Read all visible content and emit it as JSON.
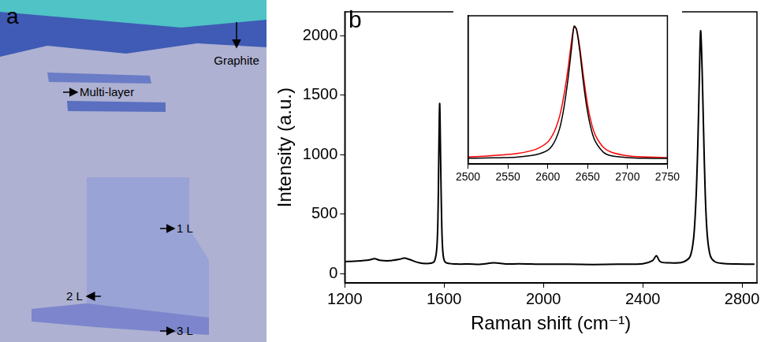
{
  "photo": {
    "letter": "a",
    "labels": [
      "Multi-layer",
      "Graphite",
      "1 L",
      "2 L",
      "3 L"
    ]
  },
  "chart_data": [
    {
      "letter": "b",
      "type": "line",
      "x_label": "Raman shift (cm⁻¹)",
      "y_label": "Intensity (a.u.)",
      "x": [
        1200,
        1250,
        1300,
        1320,
        1340,
        1380,
        1420,
        1440,
        1460,
        1500,
        1540,
        1560,
        1570,
        1575,
        1578,
        1582,
        1586,
        1590,
        1595,
        1605,
        1650,
        1700,
        1750,
        1800,
        1850,
        1900,
        1950,
        2000,
        2100,
        2200,
        2300,
        2400,
        2440,
        2455,
        2470,
        2500,
        2560,
        2590,
        2605,
        2615,
        2622,
        2628,
        2633,
        2638,
        2645,
        2652,
        2660,
        2672,
        2690,
        2720,
        2780,
        2850
      ],
      "values": [
        100,
        105,
        115,
        125,
        112,
        108,
        120,
        130,
        118,
        90,
        85,
        100,
        200,
        450,
        900,
        1430,
        950,
        450,
        180,
        95,
        80,
        80,
        78,
        90,
        80,
        82,
        80,
        78,
        78,
        76,
        78,
        82,
        110,
        150,
        100,
        90,
        95,
        140,
        300,
        650,
        1100,
        1650,
        2040,
        1800,
        1200,
        650,
        320,
        150,
        100,
        85,
        80,
        78
      ],
      "color": "#000000",
      "xlim": [
        1200,
        2860
      ],
      "xticks": [
        1200,
        1600,
        2000,
        2400,
        2800
      ],
      "ylim": [
        -80,
        2200
      ],
      "yticks": [
        0,
        500,
        1000,
        1500,
        2000
      ],
      "grid": false
    },
    {
      "type": "line",
      "x": [
        2500,
        2520,
        2540,
        2560,
        2580,
        2590,
        2600,
        2605,
        2610,
        2615,
        2620,
        2625,
        2630,
        2633,
        2636,
        2640,
        2645,
        2650,
        2655,
        2660,
        2670,
        2680,
        2700,
        2720,
        2750
      ],
      "series": [
        {
          "color": "#000000",
          "values": [
            85,
            88,
            92,
            100,
            125,
            150,
            200,
            260,
            360,
            520,
            800,
            1200,
            1700,
            2000,
            1950,
            1650,
            1150,
            750,
            480,
            320,
            170,
            120,
            95,
            85,
            82
          ]
        },
        {
          "color": "#ff0000",
          "values": [
            105,
            115,
            130,
            150,
            195,
            240,
            320,
            400,
            520,
            700,
            980,
            1350,
            1800,
            1990,
            1960,
            1700,
            1250,
            850,
            580,
            410,
            240,
            170,
            120,
            105,
            95
          ]
        }
      ],
      "xlim": [
        2500,
        2750
      ],
      "xticks": [
        2500,
        2550,
        2600,
        2650,
        2700,
        2750
      ],
      "ylim": [
        0,
        2150
      ],
      "tick_labels": "x",
      "grid": false
    }
  ]
}
